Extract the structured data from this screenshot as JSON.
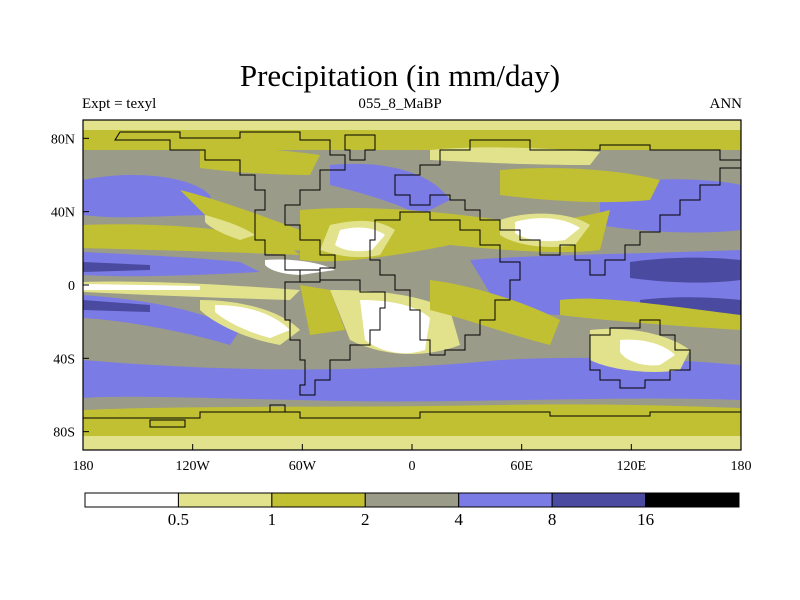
{
  "header": {
    "title": "Precipitation (in mm/day)",
    "left_label": "Expt = texyl",
    "center_label": "055_8_MaBP",
    "right_label": "ANN"
  },
  "map": {
    "projection": "cylindrical-equidistant",
    "lon_range": [
      -180,
      180
    ],
    "lat_range": [
      -90,
      90
    ],
    "lon_ticks": [
      {
        "value": -180,
        "label": "180"
      },
      {
        "value": -120,
        "label": "120W"
      },
      {
        "value": -60,
        "label": "60W"
      },
      {
        "value": 0,
        "label": "0"
      },
      {
        "value": 60,
        "label": "60E"
      },
      {
        "value": 120,
        "label": "120E"
      },
      {
        "value": 180,
        "label": "180"
      }
    ],
    "lat_ticks": [
      {
        "value": 80,
        "label": "80N"
      },
      {
        "value": 40,
        "label": "40N"
      },
      {
        "value": 0,
        "label": "0"
      },
      {
        "value": -40,
        "label": "40S"
      },
      {
        "value": -80,
        "label": "80S"
      }
    ]
  },
  "colorbar": {
    "levels": [
      "0.5",
      "1",
      "2",
      "4",
      "8",
      "16"
    ],
    "colors": [
      "#ffffff",
      "#e2e28c",
      "#c0c032",
      "#9b9b8a",
      "#7b7be6",
      "#4a4aa0",
      "#000000"
    ]
  }
}
